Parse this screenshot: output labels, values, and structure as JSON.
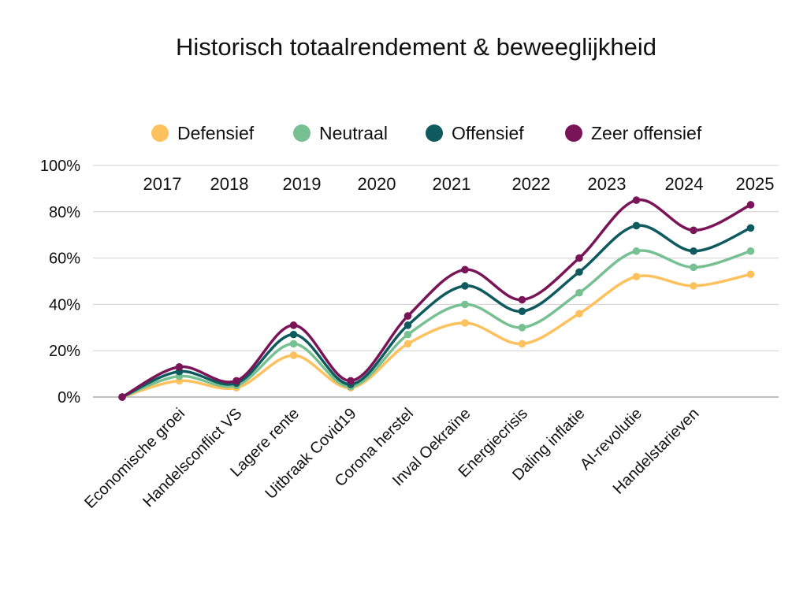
{
  "chart_data": {
    "type": "line",
    "title": "Historisch totaalrendement & beweeglijkheid",
    "xlabel": "",
    "ylabel": "",
    "ylim": [
      0,
      100
    ],
    "y_ticks": [
      "0%",
      "20%",
      "40%",
      "60%",
      "80%",
      "100%"
    ],
    "y_tick_values": [
      0,
      20,
      40,
      60,
      80,
      100
    ],
    "years": [
      "2017",
      "2018",
      "2019",
      "2020",
      "2021",
      "2022",
      "2023",
      "2024",
      "2025"
    ],
    "categories": [
      "",
      "Economische groei",
      "Handelsconflict VS",
      "Lagere rente",
      "Uitbraak Covid19",
      "Corona herstel",
      "Inval Oekraïne",
      "Energiecrisis",
      "Daling inflatie",
      "AI-revolutie",
      "Handelstarieven",
      ""
    ],
    "legend_position": "top",
    "grid": true,
    "smooth": true,
    "series": [
      {
        "name": "Defensief",
        "color": "#FFC15E",
        "values": [
          0,
          7,
          4,
          18,
          4,
          23,
          32,
          23,
          36,
          52,
          48,
          53
        ]
      },
      {
        "name": "Neutraal",
        "color": "#77C092",
        "values": [
          0,
          9,
          5,
          23,
          4.5,
          27,
          40,
          30,
          45,
          63,
          56,
          63
        ]
      },
      {
        "name": "Offensief",
        "color": "#0F5A5E",
        "values": [
          0,
          11,
          6,
          27,
          5.5,
          31,
          48,
          37,
          54,
          74,
          63,
          73
        ]
      },
      {
        "name": "Zeer offensief",
        "color": "#7A1458",
        "values": [
          0,
          13,
          7,
          31,
          7,
          35,
          55,
          42,
          60,
          85,
          72,
          83
        ]
      }
    ]
  }
}
